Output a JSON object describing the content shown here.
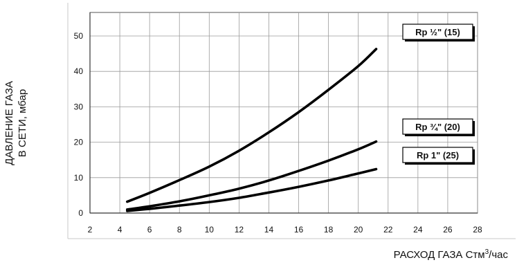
{
  "chart_data": {
    "type": "line",
    "xlabel": "РАСХОД ГАЗА Стм",
    "xlabel_sup": "3",
    "xlabel_suffix": "/час",
    "ylabel_line1": "ДАВЛЕНИЕ ГАЗА",
    "ylabel_line2": "В СЕТИ, мбар",
    "xlim": [
      2,
      28
    ],
    "ylim": [
      0,
      55
    ],
    "xticks": [
      2,
      4,
      6,
      8,
      10,
      12,
      14,
      16,
      18,
      20,
      22,
      24,
      26,
      28
    ],
    "yticks": [
      0,
      10,
      20,
      30,
      40,
      50
    ],
    "grid": true,
    "series": [
      {
        "name": "Rp ½\" (15)",
        "x": [
          4.5,
          6,
          8,
          10,
          12,
          14,
          16,
          18,
          20,
          21.2
        ],
        "y": [
          3.2,
          5.7,
          9.3,
          13.1,
          17.6,
          22.8,
          28.5,
          34.8,
          41.5,
          46.3
        ]
      },
      {
        "name": "Rp ¾\" (20)",
        "x": [
          4.5,
          6,
          8,
          10,
          12,
          14,
          16,
          18,
          20,
          21.2
        ],
        "y": [
          1.0,
          1.9,
          3.3,
          5.0,
          6.9,
          9.2,
          11.9,
          14.8,
          18.0,
          20.2
        ]
      },
      {
        "name": "Rp 1\" (25)",
        "x": [
          4.5,
          6,
          8,
          10,
          12,
          14,
          16,
          18,
          20,
          21.2
        ],
        "y": [
          0.6,
          1.2,
          2.1,
          3.1,
          4.3,
          5.8,
          7.4,
          9.2,
          11.2,
          12.4
        ]
      }
    ]
  }
}
